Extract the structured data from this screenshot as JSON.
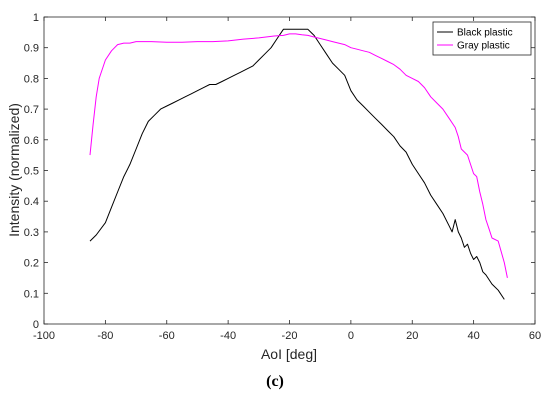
{
  "panel_label": "(c)",
  "chart_data": {
    "type": "line",
    "xlabel": "AoI [deg]",
    "ylabel": "Intensity (normalized)",
    "xlim": [
      -100,
      60
    ],
    "ylim": [
      0,
      1
    ],
    "xticks": [
      -100,
      -80,
      -60,
      -40,
      -20,
      0,
      20,
      40,
      60
    ],
    "yticks": [
      0,
      0.1,
      0.2,
      0.3,
      0.4,
      0.5,
      0.6,
      0.7,
      0.8,
      0.9,
      1
    ],
    "grid": false,
    "legend_position": "top-right",
    "series": [
      {
        "name": "Black plastic",
        "color": "#000000",
        "x": [
          -85,
          -83,
          -80,
          -78,
          -76,
          -74,
          -72,
          -70,
          -68,
          -66,
          -64,
          -62,
          -60,
          -58,
          -56,
          -54,
          -52,
          -50,
          -48,
          -46,
          -44,
          -42,
          -40,
          -38,
          -36,
          -34,
          -32,
          -30,
          -28,
          -26,
          -24,
          -22,
          -20,
          -18,
          -16,
          -14,
          -13,
          -12,
          -10,
          -8,
          -6,
          -4,
          -2,
          0,
          2,
          4,
          6,
          8,
          10,
          12,
          14,
          16,
          18,
          20,
          22,
          24,
          26,
          28,
          30,
          32,
          33,
          34,
          35,
          36,
          37,
          38,
          39,
          40,
          41,
          42,
          43,
          44,
          46,
          48,
          50
        ],
        "y": [
          0.27,
          0.29,
          0.33,
          0.38,
          0.43,
          0.48,
          0.52,
          0.57,
          0.62,
          0.66,
          0.68,
          0.7,
          0.71,
          0.72,
          0.73,
          0.74,
          0.75,
          0.76,
          0.77,
          0.78,
          0.78,
          0.79,
          0.8,
          0.81,
          0.82,
          0.83,
          0.84,
          0.86,
          0.88,
          0.9,
          0.93,
          0.96,
          0.96,
          0.96,
          0.96,
          0.96,
          0.95,
          0.94,
          0.91,
          0.88,
          0.85,
          0.83,
          0.81,
          0.76,
          0.73,
          0.71,
          0.69,
          0.67,
          0.65,
          0.63,
          0.61,
          0.58,
          0.56,
          0.52,
          0.49,
          0.46,
          0.42,
          0.39,
          0.36,
          0.32,
          0.3,
          0.34,
          0.3,
          0.28,
          0.25,
          0.26,
          0.23,
          0.21,
          0.22,
          0.2,
          0.17,
          0.16,
          0.13,
          0.11,
          0.08
        ]
      },
      {
        "name": "Gray plastic",
        "color": "#ff00ff",
        "x": [
          -85,
          -84,
          -83,
          -82,
          -80,
          -78,
          -76,
          -74,
          -72,
          -70,
          -65,
          -60,
          -55,
          -50,
          -45,
          -40,
          -35,
          -30,
          -25,
          -22,
          -20,
          -18,
          -16,
          -14,
          -12,
          -10,
          -8,
          -6,
          -4,
          -2,
          0,
          2,
          4,
          6,
          8,
          10,
          12,
          14,
          16,
          18,
          20,
          22,
          24,
          26,
          28,
          30,
          32,
          34,
          35,
          36,
          38,
          40,
          41,
          42,
          43,
          44,
          45,
          46,
          48,
          50,
          51
        ],
        "y": [
          0.55,
          0.65,
          0.74,
          0.8,
          0.86,
          0.89,
          0.91,
          0.915,
          0.915,
          0.92,
          0.92,
          0.918,
          0.918,
          0.92,
          0.92,
          0.922,
          0.928,
          0.932,
          0.938,
          0.94,
          0.945,
          0.945,
          0.942,
          0.94,
          0.935,
          0.93,
          0.925,
          0.92,
          0.915,
          0.91,
          0.9,
          0.895,
          0.89,
          0.885,
          0.875,
          0.865,
          0.855,
          0.845,
          0.83,
          0.81,
          0.8,
          0.79,
          0.77,
          0.74,
          0.72,
          0.7,
          0.67,
          0.64,
          0.61,
          0.57,
          0.55,
          0.49,
          0.48,
          0.43,
          0.39,
          0.34,
          0.31,
          0.28,
          0.27,
          0.2,
          0.15
        ]
      }
    ]
  }
}
